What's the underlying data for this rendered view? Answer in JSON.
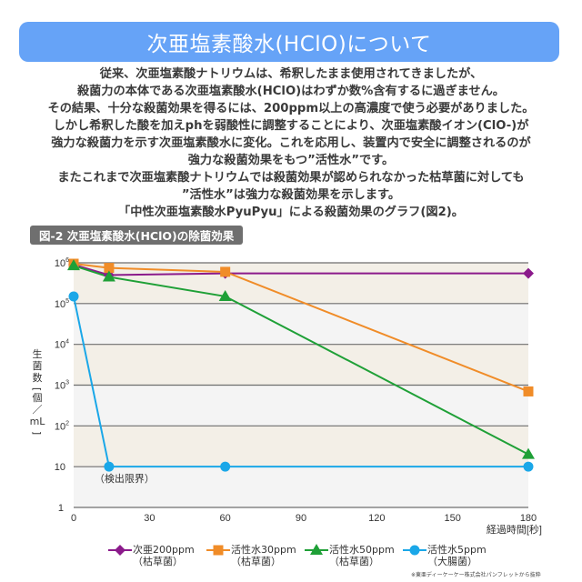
{
  "header": {
    "title": "次亜塩素酸水(HClO)について"
  },
  "intro": {
    "lines": [
      "従来、次亜塩素酸ナトリウムは、希釈したまま使用されてきましたが、",
      "殺菌力の本体である次亜塩素酸水(HClO)はわずか数%含有するに過ぎません。",
      "その結果、十分な殺菌効果を得るには、200ppm以上の高濃度で使う必要がありました。",
      "しかし希釈した酸を加えphを弱酸性に調整することにより、次亜塩素酸イオン(ClO-)が",
      "強力な殺菌力を示す次亜塩素酸水に変化。これを応用し、装置内で安全に調整されるのが",
      "強力な殺菌効果をもつ”活性水”です。",
      "またこれまで次亜塩素酸ナトリウムでは殺菌効果が認められなかった枯草菌に対しても",
      "”活性水”は強力な殺菌効果を示します。",
      "「中性次亜塩素酸水PyuPyu」による殺菌効果のグラフ(図2)。"
    ]
  },
  "figure": {
    "label": "図-2  次亜塩素酸水(HClO)の除菌効果",
    "credit": "※東亜ディーケーケー株式会社パンフレットから抜粋"
  },
  "chart_data": {
    "type": "line",
    "title": "図-2 次亜塩素酸水(HClO)の除菌効果",
    "xlabel": "経過時間[秒]",
    "ylabel": "生菌数[個/mL]",
    "ylabel_chars": [
      "生",
      "菌",
      "数",
      "[",
      "個",
      "／",
      "mL",
      "]"
    ],
    "yscale": "log",
    "xlim": [
      0,
      180
    ],
    "ylim": [
      1,
      1000000
    ],
    "x_ticks": [
      0,
      30,
      60,
      90,
      120,
      150,
      180
    ],
    "x_tick_labels": [
      "0",
      "30",
      "60",
      "90",
      "120",
      "150",
      "180"
    ],
    "y_ticks": [
      1,
      10,
      100,
      1000,
      10000,
      100000,
      1000000
    ],
    "y_tick_labels": [
      {
        "base": "1",
        "exp": ""
      },
      {
        "base": "10",
        "exp": ""
      },
      {
        "base": "10",
        "exp": "2"
      },
      {
        "base": "10",
        "exp": "3"
      },
      {
        "base": "10",
        "exp": "4"
      },
      {
        "base": "10",
        "exp": "5"
      },
      {
        "base": "10",
        "exp": "6"
      }
    ],
    "band_colors": [
      "#f4f4f4",
      "#f3efe7"
    ],
    "grid": true,
    "legend_position": "bottom",
    "annotations": [
      {
        "text": "（検出限界）",
        "x": 14,
        "y": 10
      }
    ],
    "series": [
      {
        "name": "次亜200ppm",
        "sub": "（枯草菌）",
        "color": "#8b1a8b",
        "marker": "diamond",
        "x": [
          0,
          14,
          60,
          180
        ],
        "y": [
          900000,
          500000,
          550000,
          550000
        ]
      },
      {
        "name": "活性水30ppm",
        "sub": "（枯草菌）",
        "color": "#f08c28",
        "marker": "square",
        "x": [
          0,
          14,
          60,
          180
        ],
        "y": [
          950000,
          750000,
          600000,
          700
        ]
      },
      {
        "name": "活性水50ppm",
        "sub": "（枯草菌）",
        "color": "#1fa037",
        "marker": "triangle",
        "x": [
          0,
          14,
          60,
          180
        ],
        "y": [
          850000,
          450000,
          150000,
          20
        ]
      },
      {
        "name": "活性水5ppm",
        "sub": "（大腸菌）",
        "color": "#1aa7e8",
        "marker": "circle",
        "x": [
          0,
          14,
          60,
          180
        ],
        "y": [
          150000,
          10,
          10,
          10
        ]
      }
    ]
  }
}
